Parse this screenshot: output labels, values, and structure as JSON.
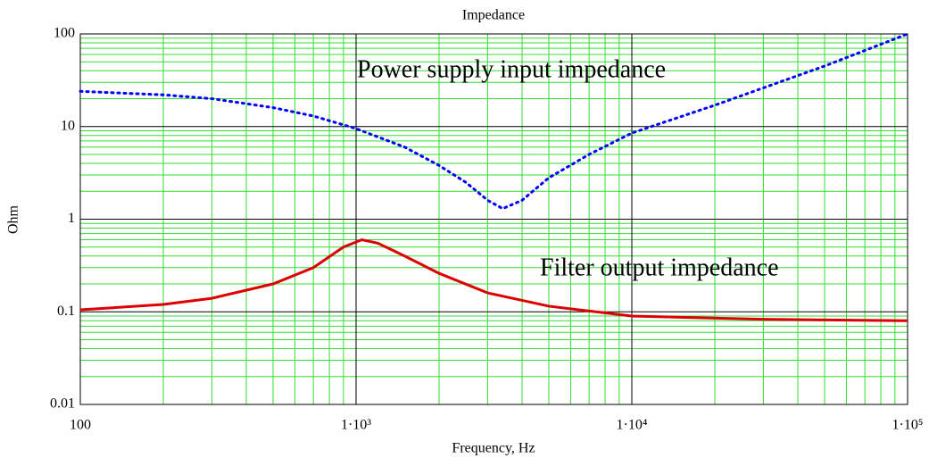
{
  "chart_data": {
    "type": "line",
    "title": "Impedance",
    "xlabel": "Frequency, Hz",
    "ylabel": "Ohm",
    "xscale": "log",
    "yscale": "log",
    "grid": true,
    "minor_grid": true,
    "xlim": [
      100,
      100000
    ],
    "xticks": [
      100,
      {
        "value": 1000,
        "label": "1·10³"
      },
      {
        "value": 10000,
        "label": "1·10⁴"
      },
      {
        "value": 100000,
        "label": "1·10⁵"
      }
    ],
    "ylim": [
      0.01,
      100
    ],
    "yticks": [
      0.01,
      0.1,
      1,
      10,
      100
    ],
    "annotations": [
      "Power supply input impedance",
      "Filter output impedance"
    ],
    "series": [
      {
        "color": "#0000ff",
        "dash": "dotted",
        "x": [
          100,
          200,
          300,
          500,
          700,
          1000,
          1500,
          2000,
          2500,
          3000,
          3400,
          4000,
          5000,
          7000,
          10000,
          20000,
          50000,
          100000
        ],
        "values": [
          24,
          22,
          20,
          16,
          13,
          9.5,
          6,
          3.8,
          2.5,
          1.6,
          1.3,
          1.6,
          2.8,
          5,
          8.5,
          17,
          45,
          100
        ]
      },
      {
        "color": "#dd0000",
        "dash": "solid",
        "x": [
          100,
          200,
          300,
          500,
          700,
          900,
          1050,
          1200,
          1500,
          2000,
          3000,
          5000,
          10000,
          30000,
          100000
        ],
        "values": [
          0.105,
          0.12,
          0.14,
          0.2,
          0.3,
          0.5,
          0.6,
          0.55,
          0.4,
          0.26,
          0.16,
          0.115,
          0.09,
          0.083,
          0.08
        ]
      }
    ]
  }
}
